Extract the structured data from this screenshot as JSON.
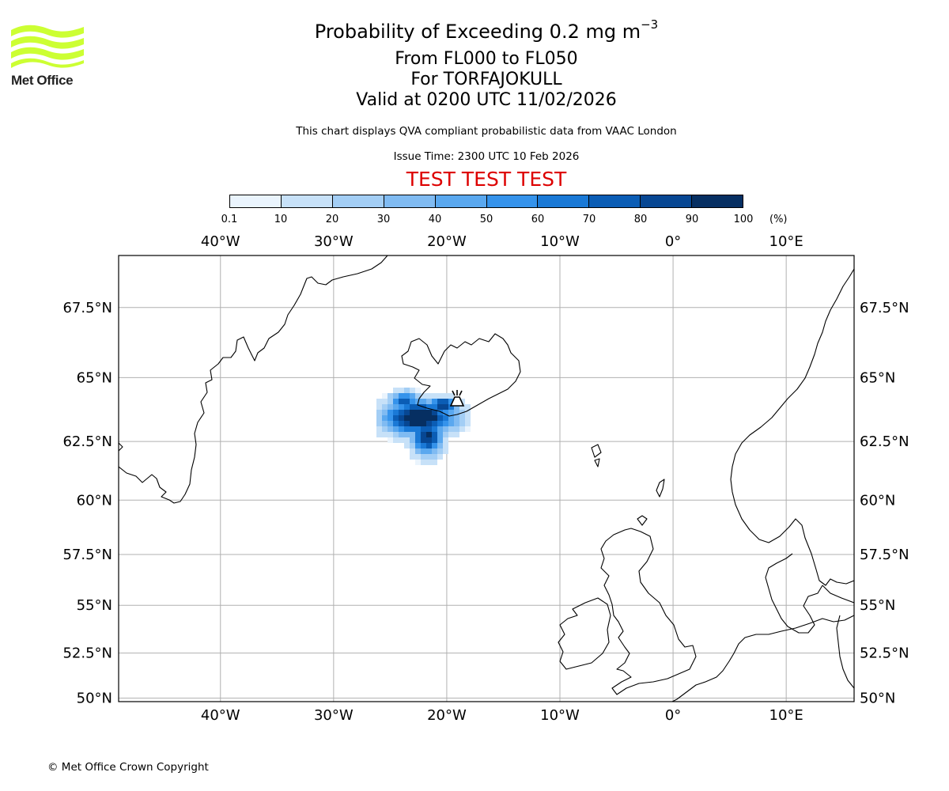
{
  "header": {
    "title_prefix": "Probability of Exceeding 0.2 mg m",
    "title_superscript": "−3",
    "flight_levels": "From FL000 to FL050",
    "volcano": "For TORFAJOKULL",
    "valid_time": "Valid at 0200 UTC 11/02/2026",
    "description": "This chart displays QVA compliant probabilistic data from VAAC London",
    "issue_time": "Issue Time: 2300 UTC 10 Feb 2026",
    "test_banner": "TEST TEST TEST",
    "test_color": "#dd0000"
  },
  "logo": {
    "text": "Met Office",
    "color": "#ccff33"
  },
  "colorbar": {
    "ticks": [
      "0.1",
      "10",
      "20",
      "30",
      "40",
      "50",
      "60",
      "70",
      "80",
      "90",
      "100"
    ],
    "unit": "(%)",
    "colors": [
      "#eaf4fd",
      "#c7e1f8",
      "#a3cef5",
      "#80bbf2",
      "#5aa8ef",
      "#3593eb",
      "#1a79d6",
      "#0b5db5",
      "#074793",
      "#062f62"
    ]
  },
  "map": {
    "lon_range": [
      -49,
      16
    ],
    "lat_range": [
      49.8,
      69.2
    ],
    "lon_ticks": [
      "40°W",
      "30°W",
      "20°W",
      "10°W",
      "0°",
      "10°E"
    ],
    "lon_tick_values": [
      -40,
      -30,
      -20,
      -10,
      0,
      10
    ],
    "lat_ticks": [
      "67.5°N",
      "65°N",
      "62.5°N",
      "60°N",
      "57.5°N",
      "55°N",
      "52.5°N",
      "50°N"
    ],
    "lat_tick_values": [
      67.5,
      65,
      62.5,
      60,
      57.5,
      55,
      52.5,
      50
    ],
    "volcano_marker": "volcano-icon",
    "volcano_location": {
      "lon": -19.1,
      "lat": 63.9
    }
  },
  "footer": {
    "copyright": "© Met Office Crown Copyright"
  }
}
